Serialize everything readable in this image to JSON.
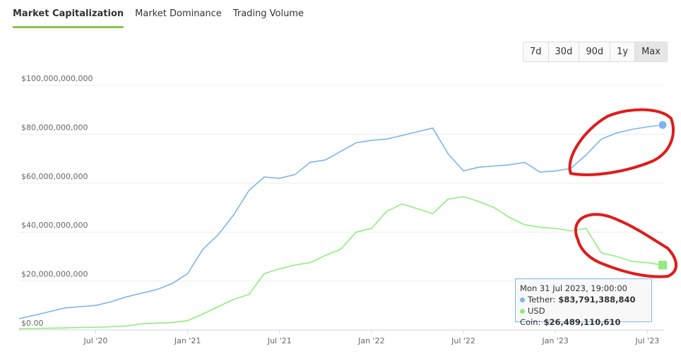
{
  "tabs": [
    "Market Capitalization",
    "Market Dominance",
    "Trading Volume"
  ],
  "range_buttons": [
    "7d",
    "30d",
    "90d",
    "1y",
    "Max"
  ],
  "chart_data": {
    "type": "line",
    "x": [
      "2020-02",
      "2020-03",
      "2020-04",
      "2020-05",
      "2020-06",
      "2020-07",
      "2020-08",
      "2020-09",
      "2020-10",
      "2020-11",
      "2020-12",
      "2021-01",
      "2021-02",
      "2021-03",
      "2021-04",
      "2021-05",
      "2021-06",
      "2021-07",
      "2021-08",
      "2021-09",
      "2021-10",
      "2021-11",
      "2021-12",
      "2022-01",
      "2022-02",
      "2022-03",
      "2022-04",
      "2022-05",
      "2022-06",
      "2022-07",
      "2022-08",
      "2022-09",
      "2022-10",
      "2022-11",
      "2022-12",
      "2023-01",
      "2023-02",
      "2023-03",
      "2023-04",
      "2023-05",
      "2023-06",
      "2023-07",
      "2023-08"
    ],
    "series": [
      {
        "name": "Tether",
        "color": "#7cb5ec",
        "values": [
          4600000000,
          6000000000,
          7500000000,
          9000000000,
          9500000000,
          10000000000,
          11500000000,
          13500000000,
          15000000000,
          16500000000,
          19000000000,
          23000000000,
          33000000000,
          39000000000,
          47000000000,
          57000000000,
          62500000000,
          62000000000,
          63500000000,
          68500000000,
          69500000000,
          73000000000,
          76500000000,
          77500000000,
          78000000000,
          79500000000,
          81000000000,
          82500000000,
          72000000000,
          65000000000,
          66500000000,
          67000000000,
          67500000000,
          68500000000,
          64500000000,
          65000000000,
          66000000000,
          71500000000,
          78000000000,
          80500000000,
          82000000000,
          83000000000,
          83791388840
        ]
      },
      {
        "name": "USD Coin",
        "color": "#90ed7d",
        "values": [
          500000000,
          600000000,
          700000000,
          800000000,
          1000000000,
          1100000000,
          1300000000,
          1600000000,
          2500000000,
          2800000000,
          3000000000,
          3800000000,
          6500000000,
          9500000000,
          12500000000,
          14500000000,
          23000000000,
          25000000000,
          26500000000,
          27500000000,
          30500000000,
          33000000000,
          40000000000,
          41500000000,
          48500000000,
          51500000000,
          49500000000,
          47500000000,
          53500000000,
          54500000000,
          52500000000,
          50000000000,
          46000000000,
          43000000000,
          42000000000,
          41500000000,
          40500000000,
          41500000000,
          31500000000,
          30000000000,
          28000000000,
          27500000000,
          26489110610
        ]
      }
    ],
    "xlim": [
      "2020-02",
      "2023-08"
    ],
    "xticks": [
      {
        "value": "2020-07",
        "label": "Jul '20"
      },
      {
        "value": "2021-01",
        "label": "Jan '21"
      },
      {
        "value": "2021-07",
        "label": "Jul '21"
      },
      {
        "value": "2022-01",
        "label": "Jan '22"
      },
      {
        "value": "2022-07",
        "label": "Jul '22"
      },
      {
        "value": "2023-01",
        "label": "Jan '23"
      },
      {
        "value": "2023-07",
        "label": "Jul '23"
      }
    ],
    "ylim": [
      0,
      100000000000
    ],
    "yticks": [
      {
        "value": 0,
        "label": "$0.00"
      },
      {
        "value": 20000000000,
        "label": "$20,000,000,000"
      },
      {
        "value": 40000000000,
        "label": "$40,000,000,000"
      },
      {
        "value": 60000000000,
        "label": "$60,000,000,000"
      },
      {
        "value": 80000000000,
        "label": "$80,000,000,000"
      },
      {
        "value": 100000000000,
        "label": "$100,000,000,000"
      }
    ],
    "grid": true,
    "tooltip": {
      "title": "Mon 31 Jul 2023, 19:00:00",
      "value_labels": [
        "$83,791,388,840",
        "$26,489,110,610"
      ]
    }
  }
}
